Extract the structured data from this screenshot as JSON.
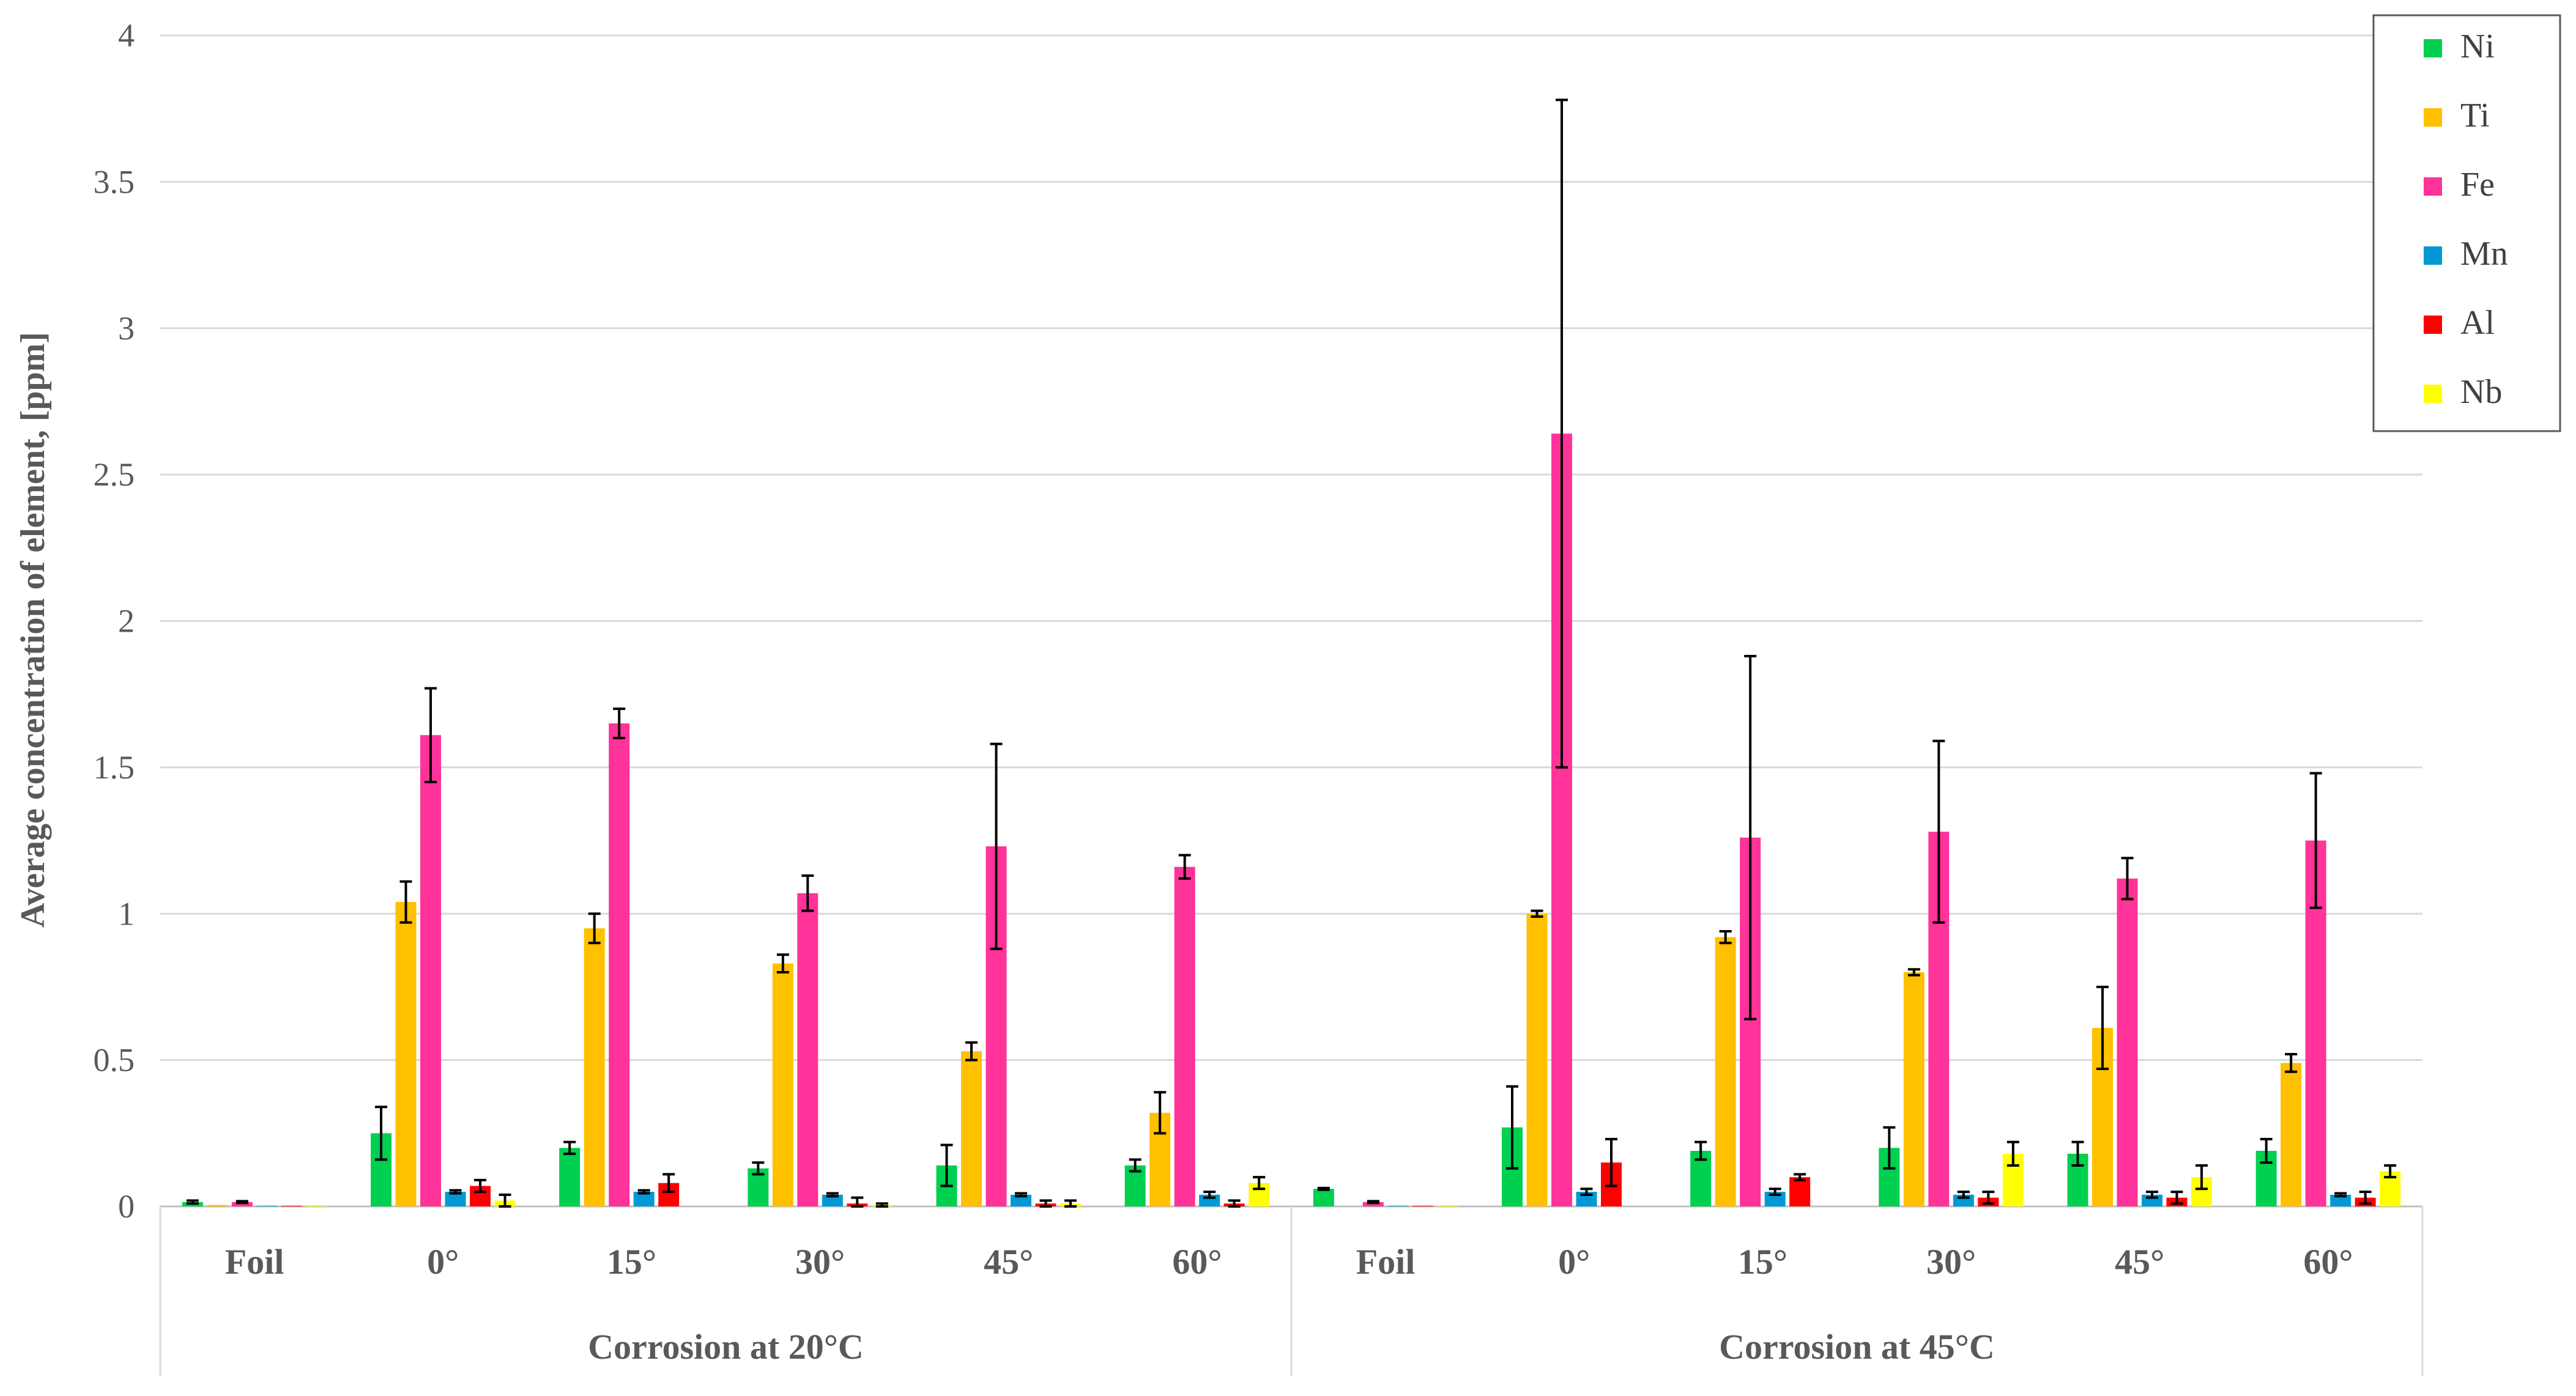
{
  "chart_data": {
    "type": "bar",
    "xlabel": "",
    "ylabel": "Average concentration of element, [ppm]",
    "ylim": [
      0,
      4
    ],
    "yticks": [
      "0",
      "0.5",
      "1",
      "1.5",
      "2",
      "2.5",
      "3",
      "3.5",
      "4"
    ],
    "grid": true,
    "legend_position": "top-right",
    "groups": [
      {
        "label": "Corrosion at 20°C",
        "categories": [
          "Foil",
          "0°",
          "15°",
          "30°",
          "45°",
          "60°"
        ]
      },
      {
        "label": "Corrosion at 45°C",
        "categories": [
          "Foil",
          "0°",
          "15°",
          "30°",
          "45°",
          "60°"
        ]
      }
    ],
    "series": [
      {
        "name": "Ni",
        "color": "#00d050",
        "values": [
          0.015,
          0.25,
          0.2,
          0.13,
          0.14,
          0.14,
          0.06,
          0.27,
          0.19,
          0.2,
          0.18,
          0.19
        ],
        "errors": [
          0.005,
          0.09,
          0.02,
          0.02,
          0.07,
          0.02,
          0.003,
          0.14,
          0.03,
          0.07,
          0.04,
          0.04
        ]
      },
      {
        "name": "Ti",
        "color": "#ffc000",
        "values": [
          0.005,
          1.04,
          0.95,
          0.83,
          0.53,
          0.32,
          0.0,
          1.0,
          0.92,
          0.8,
          0.61,
          0.49
        ],
        "errors": [
          0.0,
          0.07,
          0.05,
          0.03,
          0.03,
          0.07,
          0.0,
          0.01,
          0.02,
          0.01,
          0.14,
          0.03
        ]
      },
      {
        "name": "Fe",
        "color": "#ff3399",
        "values": [
          0.015,
          1.61,
          1.65,
          1.07,
          1.23,
          1.16,
          0.015,
          2.64,
          1.26,
          1.28,
          1.12,
          1.25
        ],
        "errors": [
          0.003,
          0.16,
          0.05,
          0.06,
          0.35,
          0.04,
          0.003,
          1.14,
          0.62,
          0.31,
          0.07,
          0.23
        ]
      },
      {
        "name": "Mn",
        "color": "#0099d6",
        "values": [
          0.002,
          0.05,
          0.05,
          0.04,
          0.04,
          0.04,
          0.002,
          0.05,
          0.05,
          0.04,
          0.04,
          0.04
        ],
        "errors": [
          0.0,
          0.005,
          0.005,
          0.005,
          0.005,
          0.01,
          0.0,
          0.01,
          0.01,
          0.01,
          0.01,
          0.005
        ]
      },
      {
        "name": "Al",
        "color": "#ff0000",
        "values": [
          0.002,
          0.07,
          0.08,
          0.01,
          0.01,
          0.01,
          0.002,
          0.15,
          0.1,
          0.03,
          0.03,
          0.03
        ],
        "errors": [
          0.0,
          0.02,
          0.03,
          0.02,
          0.01,
          0.01,
          0.0,
          0.08,
          0.01,
          0.02,
          0.02,
          0.02
        ]
      },
      {
        "name": "Nb",
        "color": "#ffff00",
        "values": [
          0.002,
          0.02,
          0.0,
          0.005,
          0.01,
          0.08,
          0.002,
          0.0,
          0.0,
          0.18,
          0.1,
          0.12
        ],
        "errors": [
          0.0,
          0.02,
          0.0,
          0.005,
          0.01,
          0.02,
          0.0,
          0.0,
          0.0,
          0.04,
          0.04,
          0.02
        ]
      }
    ]
  }
}
